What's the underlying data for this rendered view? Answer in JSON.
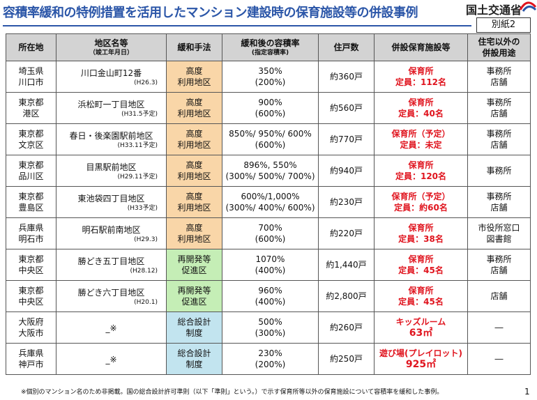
{
  "title": "容積率緩和の特例措置を活用したマンション建設時の保育施設等の併設事例",
  "ministry": "国土交通省",
  "appendix": "別紙2",
  "headers": {
    "location": "所在地",
    "district": "地区名等",
    "district_sub": "（竣工年月日）",
    "method": "緩和手法",
    "far": "緩和後の容積率",
    "far_sub": "(指定容積率)",
    "units": "住戸数",
    "facility": "併設保育施設等",
    "other_line1": "住宅以外の",
    "other_line2": "併設用途"
  },
  "rows": [
    {
      "pref": "埼玉県",
      "city": "川口市",
      "district": "川口金山町12番",
      "year": "(H26.3)",
      "method1": "高度",
      "method2": "利用地区",
      "far": "350%",
      "far_sub": "(200%)",
      "units": "約360戸",
      "facility1": "保育所",
      "facility2": "定員：112名",
      "other1": "事務所",
      "other2": "店舗"
    },
    {
      "pref": "東京都",
      "city": "港区",
      "district": "浜松町一丁目地区",
      "year": "(H31.5予定)",
      "method1": "高度",
      "method2": "利用地区",
      "far": "900%",
      "far_sub": "(600%)",
      "units": "約560戸",
      "facility1": "保育所",
      "facility2": "定員：40名",
      "other1": "事務所",
      "other2": "店舗"
    },
    {
      "pref": "東京都",
      "city": "文京区",
      "district": "春日・後楽園駅前地区",
      "year": "(H33.11予定)",
      "method1": "高度",
      "method2": "利用地区",
      "far": "850%/ 950%/ 600%",
      "far_sub": "(600%)",
      "units": "約770戸",
      "facility1": "保育所（予定）",
      "facility2": "定員：未定",
      "other1": "事務所",
      "other2": "店舗"
    },
    {
      "pref": "東京都",
      "city": "品川区",
      "district": "目黒駅前地区",
      "year": "(H29.11予定)",
      "method1": "高度",
      "method2": "利用地区",
      "far": "896%, 550%",
      "far_sub": "(300%/ 500%/ 700%)",
      "units": "約940戸",
      "facility1": "保育所",
      "facility2": "定員：120名",
      "other1": "事務所",
      "other2": ""
    },
    {
      "pref": "東京都",
      "city": "豊島区",
      "district": "東池袋四丁目地区",
      "year": "(H33予定)",
      "method1": "高度",
      "method2": "利用地区",
      "far": "600%/1,000%",
      "far_sub": "(300%/ 400%/ 600%)",
      "units": "約230戸",
      "facility1": "保育所（予定）",
      "facility2": "定員：約60名",
      "other1": "事務所",
      "other2": "店舗"
    },
    {
      "pref": "兵庫県",
      "city": "明石市",
      "district": "明石駅前南地区",
      "year": "(H29.3)",
      "method1": "高度",
      "method2": "利用地区",
      "far": "700%",
      "far_sub": "(600%)",
      "units": "約220戸",
      "facility1": "保育所",
      "facility2": "定員：38名",
      "other1": "市役所窓口",
      "other2": "図書館"
    },
    {
      "pref": "東京都",
      "city": "中央区",
      "district": "勝どき五丁目地区",
      "year": "(H28.12)",
      "method1": "再開発等",
      "method2": "促進区",
      "far": "1070%",
      "far_sub": "(400%)",
      "units": "約1,440戸",
      "facility1": "保育所",
      "facility2": "定員：45名",
      "other1": "事務所",
      "other2": "店舗"
    },
    {
      "pref": "東京都",
      "city": "中央区",
      "district": "勝どき六丁目地区",
      "year": "(H20.1)",
      "method1": "再開発等",
      "method2": "促進区",
      "far": "960%",
      "far_sub": "(400%)",
      "units": "約2,800戸",
      "facility1": "保育所",
      "facility2": "定員：45名",
      "other1": "店舗",
      "other2": ""
    },
    {
      "pref": "大阪府",
      "city": "大阪市",
      "district": "_※",
      "year": "",
      "method1": "総合設計",
      "method2": "制度",
      "far": "500%",
      "far_sub": "(300%)",
      "units": "約260戸",
      "facility1": "キッズルーム",
      "facility2": "63㎡",
      "other1": "―",
      "other2": ""
    },
    {
      "pref": "兵庫県",
      "city": "神戸市",
      "district": "_※",
      "year": "",
      "method1": "総合設計",
      "method2": "制度",
      "far": "230%",
      "far_sub": "(200%)",
      "units": "約250戸",
      "facility1": "遊び場(プレイロット)",
      "facility2": "925㎡",
      "other1": "―",
      "other2": ""
    }
  ],
  "footnote": "※個別のマンション名のため非掲載。国の総合設計許可準則（以下「準則」という。）で示す保育所等以外の保育施設について容積率を緩和した事例。",
  "page_number": "1",
  "colors": {
    "title": "#2b56a8",
    "red": "#e0141e",
    "orange": "#f9d6a8",
    "green": "#c5eeb6",
    "blue": "#c2e4ef",
    "header": "#d3d3d3"
  }
}
